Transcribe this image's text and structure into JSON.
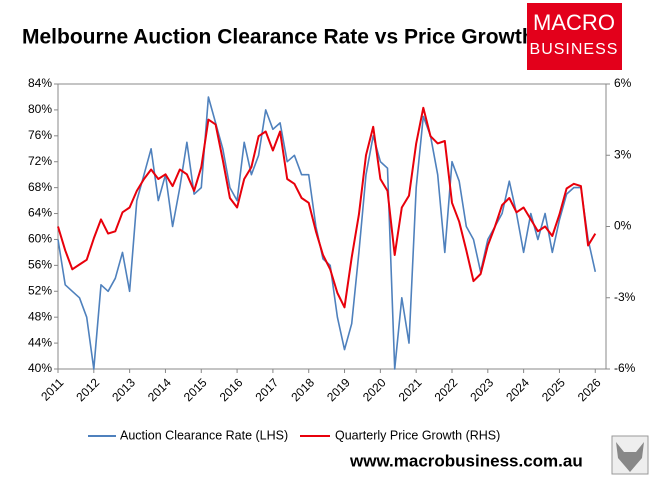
{
  "chart_data": {
    "type": "line",
    "title": "Melbourne Auction Clearance Rate vs Price Growth",
    "logo": [
      "MACRO",
      "BUSINESS"
    ],
    "source": "www.macrobusiness.com.au",
    "x": [
      2011.0,
      2011.2,
      2011.4,
      2011.6,
      2011.8,
      2012.0,
      2012.2,
      2012.4,
      2012.6,
      2012.8,
      2013.0,
      2013.2,
      2013.4,
      2013.6,
      2013.8,
      2014.0,
      2014.2,
      2014.4,
      2014.6,
      2014.8,
      2015.0,
      2015.2,
      2015.4,
      2015.6,
      2015.8,
      2016.0,
      2016.2,
      2016.4,
      2016.6,
      2016.8,
      2017.0,
      2017.2,
      2017.4,
      2017.6,
      2017.8,
      2018.0,
      2018.2,
      2018.4,
      2018.6,
      2018.8,
      2019.0,
      2019.2,
      2019.4,
      2019.6,
      2019.8,
      2020.0,
      2020.2,
      2020.4,
      2020.6,
      2020.8,
      2021.0,
      2021.2,
      2021.4,
      2021.6,
      2021.8,
      2022.0,
      2022.2,
      2022.4,
      2022.6,
      2022.8,
      2023.0,
      2023.2,
      2023.4,
      2023.6,
      2023.8,
      2024.0,
      2024.2,
      2024.4,
      2024.6,
      2024.8,
      2025.0,
      2025.2,
      2025.4,
      2025.6,
      2025.8,
      2026.0
    ],
    "series": [
      {
        "name": "Auction Clearance Rate (LHS)",
        "color": "#4f81bd",
        "axis": "y",
        "values": [
          60,
          53,
          52,
          51,
          48,
          40,
          53,
          52,
          54,
          58,
          52,
          66,
          70,
          74,
          66,
          70,
          62,
          68,
          75,
          67,
          68,
          82,
          78,
          74,
          68,
          66,
          75,
          70,
          73,
          80,
          77,
          78,
          72,
          73,
          70,
          70,
          62,
          57,
          56,
          48,
          43,
          47,
          58,
          70,
          76,
          72,
          71,
          40,
          51,
          44,
          68,
          79,
          76,
          70,
          58,
          72,
          69,
          62,
          60,
          55,
          60,
          62,
          64,
          69,
          64,
          58,
          64,
          60,
          64,
          58,
          63,
          67,
          68,
          68,
          60,
          55
        ]
      },
      {
        "name": "Quarterly Price Growth (RHS)",
        "color": "#e8000b",
        "axis": "y2",
        "values": [
          0.0,
          -1.0,
          -1.8,
          -1.6,
          -1.4,
          -0.5,
          0.3,
          -0.3,
          -0.2,
          0.6,
          0.8,
          1.5,
          2.0,
          2.4,
          2.0,
          2.2,
          1.7,
          2.4,
          2.2,
          1.5,
          2.5,
          4.5,
          4.3,
          2.8,
          1.2,
          0.8,
          2.0,
          2.5,
          3.8,
          4.0,
          3.2,
          4.0,
          2.0,
          1.8,
          1.2,
          1.0,
          -0.2,
          -1.2,
          -1.8,
          -2.8,
          -3.4,
          -1.3,
          0.5,
          3.0,
          4.2,
          2.0,
          1.5,
          -1.2,
          0.8,
          1.3,
          3.5,
          5.0,
          3.8,
          3.5,
          3.6,
          1.0,
          0.2,
          -1.0,
          -2.3,
          -2.0,
          -0.8,
          0.0,
          0.9,
          1.2,
          0.6,
          0.8,
          0.3,
          -0.2,
          0.0,
          -0.4,
          0.5,
          1.6,
          1.8,
          1.7,
          -0.8,
          -0.3
        ]
      }
    ],
    "xlim": [
      2011,
      2026.3
    ],
    "xticks": [
      2011,
      2012,
      2013,
      2014,
      2015,
      2016,
      2017,
      2018,
      2019,
      2020,
      2021,
      2022,
      2023,
      2024,
      2025,
      2026
    ],
    "ylim": [
      40,
      84
    ],
    "yticks": [
      {
        "value": 40,
        "label": "40%"
      },
      {
        "value": 44,
        "label": "44%"
      },
      {
        "value": 48,
        "label": "48%"
      },
      {
        "value": 52,
        "label": "52%"
      },
      {
        "value": 56,
        "label": "56%"
      },
      {
        "value": 60,
        "label": "60%"
      },
      {
        "value": 64,
        "label": "64%"
      },
      {
        "value": 68,
        "label": "68%"
      },
      {
        "value": 72,
        "label": "72%"
      },
      {
        "value": 76,
        "label": "76%"
      },
      {
        "value": 80,
        "label": "80%"
      },
      {
        "value": 84,
        "label": "84%"
      }
    ],
    "y2lim": [
      -6,
      6
    ],
    "y2ticks": [
      {
        "value": -6,
        "label": "-6%"
      },
      {
        "value": -3,
        "label": "-3%"
      },
      {
        "value": 0,
        "label": "0%"
      },
      {
        "value": 3,
        "label": "3%"
      },
      {
        "value": 6,
        "label": "6%"
      }
    ],
    "grid": false
  }
}
